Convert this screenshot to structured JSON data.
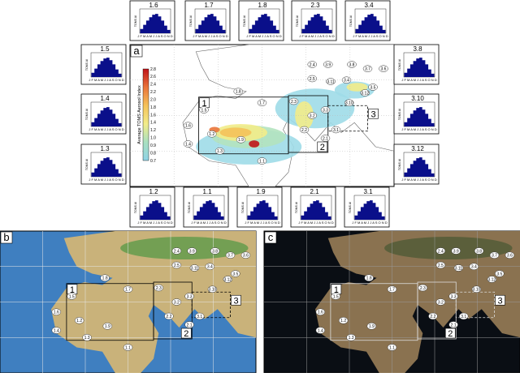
{
  "panel_labels": [
    "a",
    "b",
    "c"
  ],
  "colorbar": {
    "label": "Average TOMS Aerosol Index",
    "ticks": [
      "0.7",
      "0.8",
      "0.9",
      "1.0",
      "1.2",
      "1.4",
      "1.6",
      "1.8",
      "2.0",
      "2.2",
      "2.4",
      "2.6",
      "2.8"
    ]
  },
  "regions": [
    "1",
    "2",
    "3"
  ],
  "inset_axis": {
    "y_label": "TOMS AI",
    "months": "J F M A M J J A S O N D"
  },
  "insets": [
    "1.6",
    "1.7",
    "1.8",
    "2.3",
    "3.4",
    "1.5",
    "1.4",
    "1.3",
    "3.8",
    "3.10",
    "3.12",
    "1.2",
    "1.1",
    "1.9",
    "2.1",
    "3.1"
  ],
  "sites": [
    "2.4",
    "3.9",
    "3.8",
    "3.7",
    "3.6",
    "2.5",
    "3.11",
    "3.4",
    "3.5",
    "1.8",
    "1.7",
    "1.6",
    "2.3",
    "3.10",
    "3.12",
    "3.3",
    "3.2",
    "1.5",
    "2.2",
    "1.4",
    "1.3",
    "1.2",
    "1.9",
    "1.1",
    "2.1",
    "3.1"
  ]
}
